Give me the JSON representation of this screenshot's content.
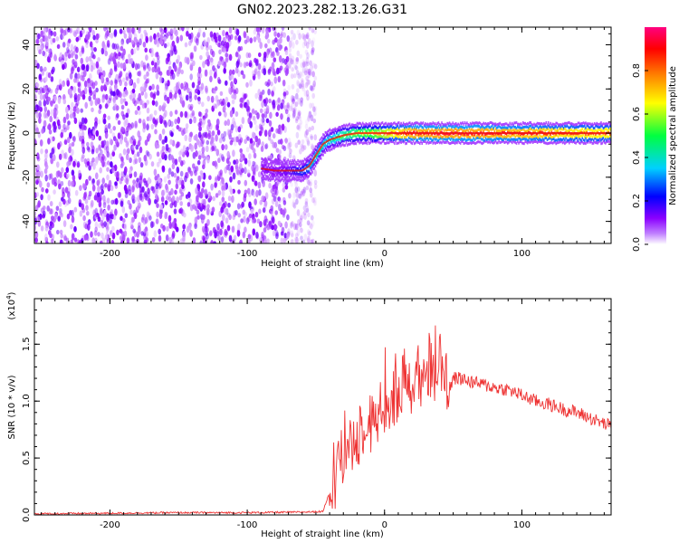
{
  "title": "GN02.2023.282.13.26.G31",
  "chart_data": [
    {
      "type": "heatmap",
      "xlabel": "Height of straight line (km)",
      "ylabel": "Frequency (Hz)",
      "xlim": [
        -255,
        165
      ],
      "ylim": [
        -50,
        48
      ],
      "xticks": [
        -200,
        -100,
        0,
        100
      ],
      "yticks": [
        -40,
        -20,
        0,
        20,
        40
      ],
      "colorbar": {
        "label": "Normalized spectral amplitude",
        "range": [
          0,
          1
        ],
        "ticks": [
          "0.0",
          "0.2",
          "0.4",
          "0.6",
          "0.8"
        ],
        "colormap": [
          "#ffffff",
          "#8b00ff",
          "#0000ff",
          "#00d0ff",
          "#00ff40",
          "#ffff00",
          "#ff8000",
          "#ff0000",
          "#ff0080"
        ]
      },
      "signal_track": {
        "x": [
          -90,
          -80,
          -70,
          -60,
          -55,
          -50,
          -45,
          -40,
          -30,
          -20,
          -10,
          0,
          20,
          40,
          60,
          80,
          100,
          120,
          140,
          165
        ],
        "frequency": [
          -16,
          -17,
          -17,
          -17,
          -15,
          -10,
          -5,
          -3,
          -1,
          0,
          0,
          0,
          0,
          0,
          0,
          0,
          0,
          0,
          0,
          0
        ],
        "amplitude": [
          0.15,
          0.15,
          0.2,
          0.3,
          0.4,
          0.45,
          0.45,
          0.45,
          0.55,
          0.6,
          0.65,
          0.75,
          0.9,
          0.92,
          0.92,
          0.9,
          0.88,
          0.85,
          0.82,
          0.8
        ]
      },
      "noise_region_x": [
        -255,
        -50
      ]
    },
    {
      "type": "line",
      "xlabel": "Height of straight line (km)",
      "ylabel": "SNR (10 * v/v)",
      "scale_note": "(x10",
      "scale_exp": "4",
      "xlim": [
        -255,
        165
      ],
      "ylim": [
        0,
        1.9
      ],
      "xticks": [
        -200,
        -100,
        0,
        100
      ],
      "yticks": [
        "0.0",
        "0.5",
        "1.0",
        "1.5"
      ],
      "color": "#ee3333",
      "series": [
        {
          "x": [
            -255,
            -200,
            -150,
            -100,
            -60,
            -45,
            -40,
            -35,
            -30,
            -25,
            -20,
            -15,
            -10,
            -5,
            0,
            5,
            10,
            15,
            20,
            25,
            30,
            35,
            40,
            45,
            50,
            55,
            60,
            70,
            80,
            90,
            100,
            110,
            120,
            130,
            140,
            150,
            160,
            165
          ],
          "y": [
            0.01,
            0.015,
            0.02,
            0.02,
            0.025,
            0.03,
            0.2,
            0.45,
            0.55,
            0.65,
            0.72,
            0.78,
            0.85,
            0.9,
            0.95,
            1.0,
            1.05,
            1.15,
            1.25,
            1.3,
            1.3,
            1.32,
            1.3,
            1.25,
            1.2,
            1.2,
            1.18,
            1.15,
            1.12,
            1.1,
            1.05,
            1.0,
            0.97,
            0.93,
            0.9,
            0.85,
            0.8,
            0.78
          ]
        }
      ]
    }
  ]
}
